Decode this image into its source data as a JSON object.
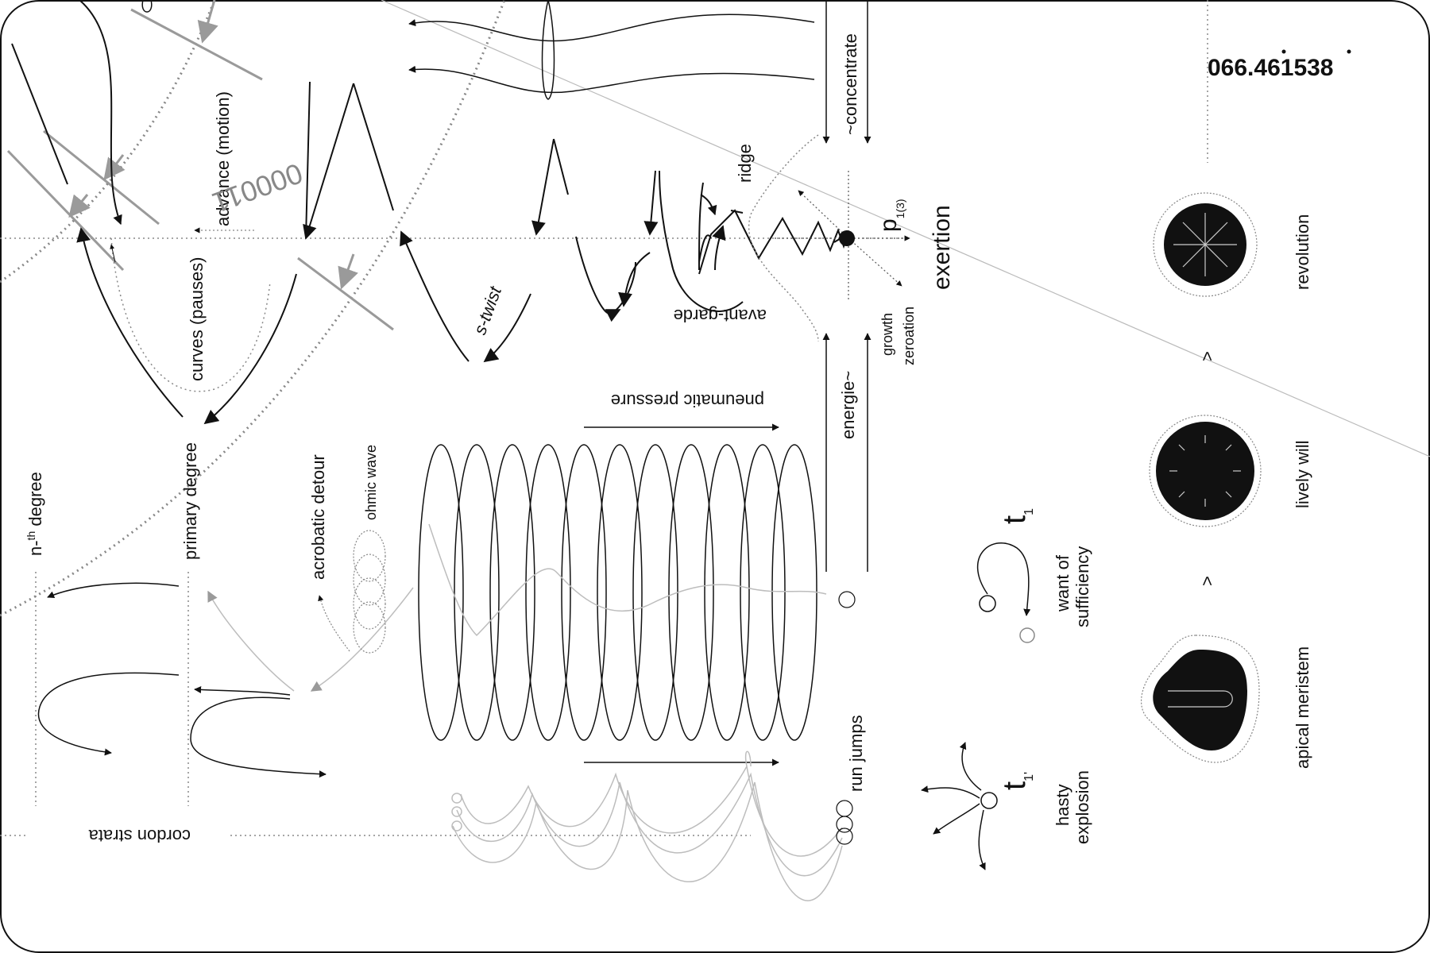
{
  "labels": {
    "advance": "advance (motion)",
    "curves_pauses": "curves (pauses)",
    "primary_degree": "primary degree",
    "nth_degree_base": "n-",
    "nth_degree_sup": "th",
    "nth_degree_rest": " degree",
    "acrobatic_detour": "acrobatic detour",
    "ohmic_wave": "ohmic wave",
    "s_twist": "s-twist",
    "avant_garde": "avant-garde",
    "ridge": "ridge",
    "concentrate": "~concentrate",
    "energie": "energie~",
    "growth": "growth",
    "zeroation": "zeroation",
    "p_main": "p",
    "p_sub": "1(3)",
    "exertion": "exertion",
    "pneumatic_pressure": "pneumatic pressure",
    "run_jumps": "run jumps",
    "cordon_strata": "cordon strata",
    "rotated_number": "000011",
    "big_number": "066.461538",
    "t1_main": "t",
    "t1_sub": "1",
    "t1prime_sub": "1'",
    "want_of": "want of",
    "sufficiency": "sufficiency",
    "hasty": "hasty",
    "explosion": "explosion",
    "revolution": "revolution",
    "lively_will": "lively will",
    "apical_meristem": "apical meristem",
    "gt_symbol_1": ">",
    "gt_symbol_2": ">"
  },
  "colors": {
    "ink": "#111111",
    "gray": "#9a9a9a",
    "light_gray": "#bdbdbd",
    "dotted": "#888888"
  }
}
